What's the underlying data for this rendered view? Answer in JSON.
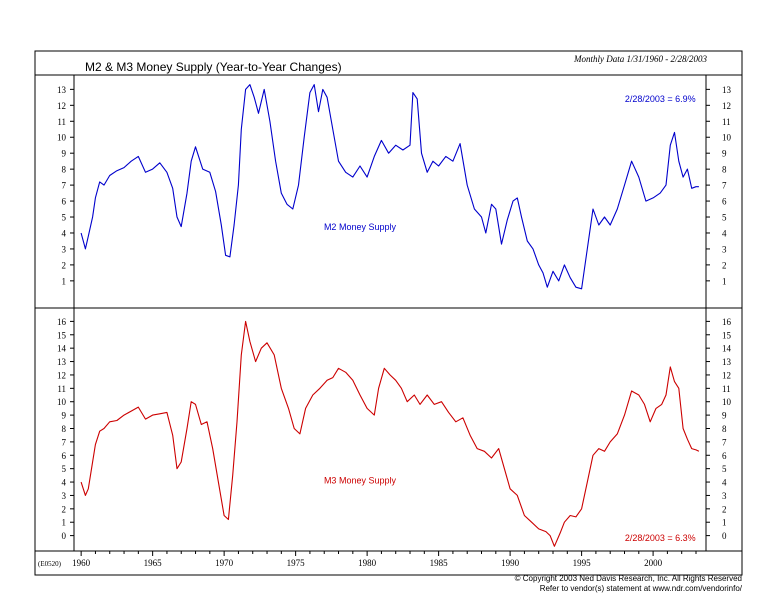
{
  "header": {
    "title": "M2 & M3 Money Supply (Year-to-Year Changes)",
    "period_note": "Monthly Data 1/31/1960 - 2/28/2003"
  },
  "footer": {
    "chart_code": "(E0520)",
    "copyright": "© Copyright 2003 Ned Davis Research, Inc. All Rights Reserved",
    "vendor_note": "Refer to vendor(s) statement at www.ndr.com/vendorinfo/"
  },
  "colors": {
    "m2": "#0000cc",
    "m3": "#cc0000",
    "frame": "#000000"
  },
  "chart_data": [
    {
      "type": "line",
      "series": [
        {
          "name": "M2 Money Supply",
          "color": "#0000cc",
          "points": [
            [
              1960.0,
              4.0
            ],
            [
              1960.3,
              3.0
            ],
            [
              1960.5,
              3.8
            ],
            [
              1960.8,
              5.0
            ],
            [
              1961.0,
              6.2
            ],
            [
              1961.3,
              7.2
            ],
            [
              1961.6,
              7.0
            ],
            [
              1962.0,
              7.6
            ],
            [
              1962.5,
              7.9
            ],
            [
              1963.0,
              8.1
            ],
            [
              1963.5,
              8.5
            ],
            [
              1964.0,
              8.8
            ],
            [
              1964.5,
              7.8
            ],
            [
              1965.0,
              8.0
            ],
            [
              1965.5,
              8.4
            ],
            [
              1966.0,
              7.8
            ],
            [
              1966.4,
              6.8
            ],
            [
              1966.7,
              5.0
            ],
            [
              1967.0,
              4.4
            ],
            [
              1967.4,
              6.5
            ],
            [
              1967.7,
              8.5
            ],
            [
              1968.0,
              9.4
            ],
            [
              1968.5,
              8.0
            ],
            [
              1969.0,
              7.8
            ],
            [
              1969.4,
              6.6
            ],
            [
              1969.8,
              4.5
            ],
            [
              1970.1,
              2.6
            ],
            [
              1970.4,
              2.5
            ],
            [
              1970.7,
              4.5
            ],
            [
              1971.0,
              7.0
            ],
            [
              1971.2,
              10.5
            ],
            [
              1971.5,
              13.0
            ],
            [
              1971.8,
              13.3
            ],
            [
              1972.1,
              12.5
            ],
            [
              1972.4,
              11.5
            ],
            [
              1972.8,
              13.0
            ],
            [
              1973.2,
              11.0
            ],
            [
              1973.6,
              8.5
            ],
            [
              1974.0,
              6.5
            ],
            [
              1974.4,
              5.8
            ],
            [
              1974.8,
              5.5
            ],
            [
              1975.2,
              7.0
            ],
            [
              1975.6,
              10.0
            ],
            [
              1976.0,
              12.8
            ],
            [
              1976.3,
              13.3
            ],
            [
              1976.6,
              11.6
            ],
            [
              1976.9,
              13.0
            ],
            [
              1977.2,
              12.5
            ],
            [
              1977.6,
              10.5
            ],
            [
              1978.0,
              8.5
            ],
            [
              1978.5,
              7.8
            ],
            [
              1979.0,
              7.5
            ],
            [
              1979.5,
              8.2
            ],
            [
              1980.0,
              7.5
            ],
            [
              1980.5,
              8.8
            ],
            [
              1981.0,
              9.8
            ],
            [
              1981.5,
              9.0
            ],
            [
              1982.0,
              9.5
            ],
            [
              1982.5,
              9.2
            ],
            [
              1983.0,
              9.5
            ],
            [
              1983.2,
              12.8
            ],
            [
              1983.5,
              12.4
            ],
            [
              1983.8,
              9.0
            ],
            [
              1984.2,
              7.8
            ],
            [
              1984.6,
              8.5
            ],
            [
              1985.0,
              8.2
            ],
            [
              1985.5,
              8.8
            ],
            [
              1986.0,
              8.5
            ],
            [
              1986.5,
              9.6
            ],
            [
              1987.0,
              7.0
            ],
            [
              1987.5,
              5.5
            ],
            [
              1988.0,
              5.0
            ],
            [
              1988.3,
              4.0
            ],
            [
              1988.7,
              5.8
            ],
            [
              1989.0,
              5.5
            ],
            [
              1989.4,
              3.3
            ],
            [
              1989.8,
              4.8
            ],
            [
              1990.2,
              6.0
            ],
            [
              1990.5,
              6.2
            ],
            [
              1990.8,
              5.0
            ],
            [
              1991.2,
              3.5
            ],
            [
              1991.6,
              3.0
            ],
            [
              1992.0,
              2.0
            ],
            [
              1992.3,
              1.5
            ],
            [
              1992.6,
              0.6
            ],
            [
              1993.0,
              1.6
            ],
            [
              1993.4,
              1.0
            ],
            [
              1993.8,
              2.0
            ],
            [
              1994.2,
              1.2
            ],
            [
              1994.6,
              0.6
            ],
            [
              1995.0,
              0.5
            ],
            [
              1995.4,
              3.0
            ],
            [
              1995.8,
              5.5
            ],
            [
              1996.2,
              4.5
            ],
            [
              1996.6,
              5.0
            ],
            [
              1997.0,
              4.5
            ],
            [
              1997.5,
              5.5
            ],
            [
              1998.0,
              7.0
            ],
            [
              1998.5,
              8.5
            ],
            [
              1999.0,
              7.5
            ],
            [
              1999.5,
              6.0
            ],
            [
              2000.0,
              6.2
            ],
            [
              2000.5,
              6.5
            ],
            [
              2000.9,
              7.0
            ],
            [
              2001.2,
              9.5
            ],
            [
              2001.5,
              10.3
            ],
            [
              2001.8,
              8.5
            ],
            [
              2002.1,
              7.5
            ],
            [
              2002.4,
              8.0
            ],
            [
              2002.7,
              6.8
            ],
            [
              2003.0,
              6.9
            ],
            [
              2003.2,
              6.9
            ]
          ]
        }
      ],
      "xlim": [
        1959.5,
        2003.7
      ],
      "ylim": [
        -0.2,
        13.9
      ],
      "yticks": [
        1,
        2,
        3,
        4,
        5,
        6,
        7,
        8,
        9,
        10,
        11,
        12,
        13
      ],
      "annotations": [
        {
          "text": "2/28/2003 = 6.9%",
          "x": 2000.5,
          "y": 12.2
        },
        {
          "text": "M2 Money Supply",
          "x": 1979.5,
          "y": 4.2
        }
      ],
      "grid": false,
      "legend": "none"
    },
    {
      "type": "line",
      "series": [
        {
          "name": "M3 Money Supply",
          "color": "#cc0000",
          "points": [
            [
              1960.0,
              4.0
            ],
            [
              1960.3,
              3.0
            ],
            [
              1960.5,
              3.5
            ],
            [
              1960.8,
              5.5
            ],
            [
              1961.0,
              6.8
            ],
            [
              1961.3,
              7.8
            ],
            [
              1961.6,
              8.0
            ],
            [
              1962.0,
              8.5
            ],
            [
              1962.5,
              8.6
            ],
            [
              1963.0,
              9.0
            ],
            [
              1963.5,
              9.3
            ],
            [
              1964.0,
              9.6
            ],
            [
              1964.5,
              8.7
            ],
            [
              1965.0,
              9.0
            ],
            [
              1965.5,
              9.1
            ],
            [
              1966.0,
              9.2
            ],
            [
              1966.4,
              7.5
            ],
            [
              1966.7,
              5.0
            ],
            [
              1967.0,
              5.5
            ],
            [
              1967.4,
              8.0
            ],
            [
              1967.7,
              10.0
            ],
            [
              1968.0,
              9.8
            ],
            [
              1968.4,
              8.3
            ],
            [
              1968.8,
              8.5
            ],
            [
              1969.2,
              6.5
            ],
            [
              1969.6,
              4.0
            ],
            [
              1970.0,
              1.5
            ],
            [
              1970.3,
              1.2
            ],
            [
              1970.6,
              4.5
            ],
            [
              1970.9,
              8.5
            ],
            [
              1971.2,
              13.5
            ],
            [
              1971.5,
              16.0
            ],
            [
              1971.8,
              14.5
            ],
            [
              1972.2,
              13.0
            ],
            [
              1972.6,
              14.0
            ],
            [
              1973.0,
              14.4
            ],
            [
              1973.5,
              13.5
            ],
            [
              1974.0,
              11.0
            ],
            [
              1974.5,
              9.5
            ],
            [
              1974.9,
              8.0
            ],
            [
              1975.3,
              7.6
            ],
            [
              1975.7,
              9.5
            ],
            [
              1976.2,
              10.5
            ],
            [
              1976.7,
              11.0
            ],
            [
              1977.2,
              11.6
            ],
            [
              1977.6,
              11.8
            ],
            [
              1978.0,
              12.5
            ],
            [
              1978.5,
              12.2
            ],
            [
              1979.0,
              11.6
            ],
            [
              1979.5,
              10.5
            ],
            [
              1980.0,
              9.5
            ],
            [
              1980.5,
              9.0
            ],
            [
              1980.8,
              11.0
            ],
            [
              1981.2,
              12.5
            ],
            [
              1981.6,
              12.0
            ],
            [
              1982.0,
              11.6
            ],
            [
              1982.4,
              11.0
            ],
            [
              1982.8,
              10.0
            ],
            [
              1983.3,
              10.5
            ],
            [
              1983.7,
              9.8
            ],
            [
              1984.2,
              10.5
            ],
            [
              1984.7,
              9.8
            ],
            [
              1985.2,
              10.0
            ],
            [
              1985.7,
              9.2
            ],
            [
              1986.2,
              8.5
            ],
            [
              1986.7,
              8.8
            ],
            [
              1987.2,
              7.5
            ],
            [
              1987.7,
              6.5
            ],
            [
              1988.2,
              6.3
            ],
            [
              1988.7,
              5.8
            ],
            [
              1989.2,
              6.5
            ],
            [
              1989.6,
              5.0
            ],
            [
              1990.0,
              3.5
            ],
            [
              1990.5,
              3.0
            ],
            [
              1991.0,
              1.5
            ],
            [
              1991.5,
              1.0
            ],
            [
              1992.0,
              0.5
            ],
            [
              1992.5,
              0.3
            ],
            [
              1992.8,
              0.0
            ],
            [
              1993.1,
              -0.8
            ],
            [
              1993.5,
              0.2
            ],
            [
              1993.8,
              1.0
            ],
            [
              1994.2,
              1.5
            ],
            [
              1994.6,
              1.4
            ],
            [
              1995.0,
              2.0
            ],
            [
              1995.4,
              4.0
            ],
            [
              1995.8,
              6.0
            ],
            [
              1996.2,
              6.5
            ],
            [
              1996.6,
              6.3
            ],
            [
              1997.0,
              7.0
            ],
            [
              1997.5,
              7.6
            ],
            [
              1998.0,
              9.0
            ],
            [
              1998.5,
              10.8
            ],
            [
              1999.0,
              10.5
            ],
            [
              1999.4,
              9.8
            ],
            [
              1999.8,
              8.5
            ],
            [
              2000.2,
              9.5
            ],
            [
              2000.6,
              9.8
            ],
            [
              2000.9,
              10.5
            ],
            [
              2001.2,
              12.6
            ],
            [
              2001.5,
              11.5
            ],
            [
              2001.8,
              11.0
            ],
            [
              2002.1,
              8.0
            ],
            [
              2002.4,
              7.2
            ],
            [
              2002.7,
              6.5
            ],
            [
              2003.0,
              6.4
            ],
            [
              2003.2,
              6.3
            ]
          ]
        }
      ],
      "xlim": [
        1959.5,
        2003.7
      ],
      "ylim": [
        -1.0,
        17.0
      ],
      "yticks": [
        0,
        1,
        2,
        3,
        4,
        5,
        6,
        7,
        8,
        9,
        10,
        11,
        12,
        13,
        14,
        15,
        16
      ],
      "annotations": [
        {
          "text": "M3 Money Supply",
          "x": 1979.5,
          "y": 3.9
        },
        {
          "text": "2/28/2003 = 6.3%",
          "x": 2000.5,
          "y": -0.4
        }
      ],
      "xticks": [
        1960,
        1965,
        1970,
        1975,
        1980,
        1985,
        1990,
        1995,
        2000
      ],
      "grid": false,
      "legend": "none"
    }
  ]
}
